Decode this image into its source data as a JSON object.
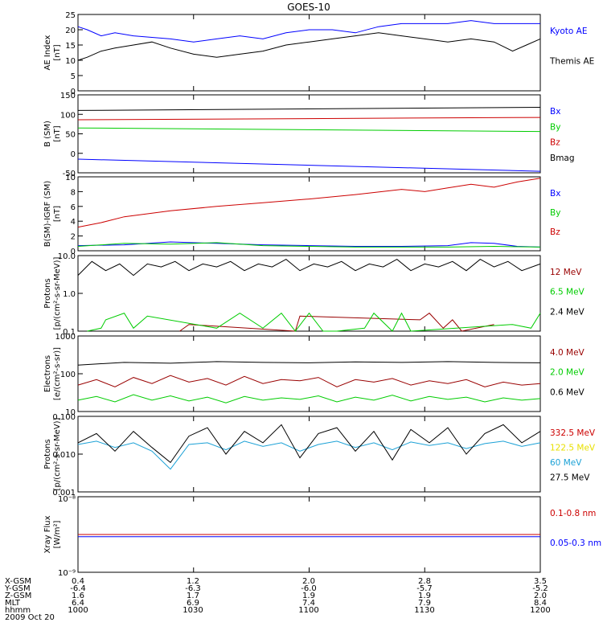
{
  "title": "GOES-10",
  "colors": {
    "blue": "#0000ff",
    "black": "#000000",
    "green": "#00cc00",
    "red": "#cc0000",
    "cyan": "#1ba1d6",
    "yellow": "#e8e000",
    "darkred": "#990000"
  },
  "ephemeris": {
    "row_labels": [
      "X-GSM",
      "Y-GSM",
      "Z-GSM",
      "MLT",
      "hhmm",
      "2009 Oct 20"
    ],
    "columns": [
      [
        "0.4",
        "-6.4",
        "1.6",
        "6.4",
        "1000"
      ],
      [
        "1.2",
        "-6.3",
        "1.7",
        "6.9",
        "1030"
      ],
      [
        "2.0",
        "-6.0",
        "1.9",
        "7.4",
        "1100"
      ],
      [
        "2.8",
        "-5.7",
        "1.9",
        "7.9",
        "1130"
      ],
      [
        "3.5",
        "-5.2",
        "2.0",
        "8.4",
        "1200"
      ]
    ]
  },
  "chart_data": [
    {
      "type": "line",
      "panel": "ae",
      "ylabel": "AE Index",
      "yunit": "[nT]",
      "ylim": [
        0,
        25
      ],
      "yticks": [
        "0",
        "5",
        "10",
        "15",
        "20",
        "25"
      ],
      "x_range": [
        "10:00",
        "12:00"
      ],
      "series": [
        {
          "name": "Kyoto AE",
          "color": "blue",
          "x": [
            0,
            0.02,
            0.05,
            0.08,
            0.12,
            0.2,
            0.25,
            0.3,
            0.35,
            0.4,
            0.45,
            0.5,
            0.55,
            0.6,
            0.65,
            0.7,
            0.75,
            0.8,
            0.85,
            0.9,
            0.95,
            1.0
          ],
          "y": [
            21,
            20,
            18,
            19,
            18,
            17,
            16,
            17,
            18,
            17,
            19,
            20,
            20,
            19,
            21,
            22,
            22,
            22,
            23,
            22,
            22,
            22
          ]
        },
        {
          "name": "Themis AE",
          "color": "black",
          "x": [
            0,
            0.02,
            0.05,
            0.08,
            0.12,
            0.16,
            0.2,
            0.25,
            0.3,
            0.35,
            0.4,
            0.45,
            0.5,
            0.55,
            0.6,
            0.65,
            0.7,
            0.75,
            0.8,
            0.85,
            0.9,
            0.94,
            0.97,
            1.0
          ],
          "y": [
            10,
            11,
            13,
            14,
            15,
            16,
            14,
            12,
            11,
            12,
            13,
            15,
            16,
            17,
            18,
            19,
            18,
            17,
            16,
            17,
            16,
            13,
            15,
            17
          ]
        }
      ]
    },
    {
      "type": "line",
      "panel": "b",
      "ylabel": "B (SM)",
      "yunit": "[nT]",
      "ylim": [
        -50,
        150
      ],
      "yticks": [
        "-50",
        "0",
        "50",
        "100",
        "150"
      ],
      "series": [
        {
          "name": "Bx",
          "color": "blue",
          "x": [
            0,
            1
          ],
          "y": [
            -15,
            -46
          ]
        },
        {
          "name": "By",
          "color": "green",
          "x": [
            0,
            1
          ],
          "y": [
            65,
            56
          ]
        },
        {
          "name": "Bz",
          "color": "red",
          "x": [
            0,
            1
          ],
          "y": [
            86,
            92
          ]
        },
        {
          "name": "Bmag",
          "color": "black",
          "x": [
            0,
            1
          ],
          "y": [
            110,
            118
          ]
        }
      ]
    },
    {
      "type": "line",
      "panel": "bdiff",
      "ylabel": "B(SM)-IGRF (SM)",
      "yunit": "[nT]",
      "ylim": [
        0,
        10
      ],
      "yticks": [
        "0",
        "2",
        "4",
        "6",
        "8",
        "10"
      ],
      "series": [
        {
          "name": "Bx",
          "color": "blue",
          "x": [
            0,
            0.1,
            0.2,
            0.3,
            0.4,
            0.5,
            0.6,
            0.7,
            0.8,
            0.85,
            0.9,
            0.95,
            1.0
          ],
          "y": [
            0.7,
            0.8,
            1.2,
            1.0,
            0.8,
            0.7,
            0.6,
            0.6,
            0.7,
            1.1,
            1.0,
            0.6,
            0.5
          ]
        },
        {
          "name": "By",
          "color": "green",
          "x": [
            0,
            0.1,
            0.2,
            0.3,
            0.4,
            0.5,
            0.6,
            0.7,
            0.8,
            0.9,
            1.0
          ],
          "y": [
            0.6,
            1.0,
            0.9,
            1.1,
            0.7,
            0.6,
            0.5,
            0.5,
            0.5,
            0.6,
            0.5
          ]
        },
        {
          "name": "Bz",
          "color": "red",
          "x": [
            0,
            0.05,
            0.1,
            0.15,
            0.2,
            0.3,
            0.4,
            0.5,
            0.6,
            0.7,
            0.75,
            0.8,
            0.85,
            0.9,
            0.95,
            1.0
          ],
          "y": [
            3.2,
            3.8,
            4.6,
            5.0,
            5.4,
            6.0,
            6.5,
            7.0,
            7.6,
            8.3,
            8.0,
            8.5,
            9.0,
            8.6,
            9.3,
            9.8
          ]
        }
      ]
    },
    {
      "type": "line",
      "panel": "protons1",
      "scale": "log",
      "ylabel": "Protons",
      "yunit": "[p/(cm²-s-sr-MeV)]",
      "ylim": [
        0.1,
        10
      ],
      "yticks": [
        "0.1",
        "1.0",
        "10.0"
      ],
      "series": [
        {
          "name": "12 MeV",
          "color": "darkred",
          "x": [
            0.22,
            0.24,
            0.47,
            0.48,
            0.74,
            0.76,
            0.79,
            0.81,
            0.83,
            0.9
          ],
          "y": [
            0.1,
            0.15,
            0.1,
            0.25,
            0.2,
            0.3,
            0.12,
            0.2,
            0.1,
            0.15
          ]
        },
        {
          "name": "6.5 MeV",
          "color": "green",
          "x": [
            0.02,
            0.05,
            0.06,
            0.1,
            0.12,
            0.15,
            0.3,
            0.35,
            0.4,
            0.44,
            0.47,
            0.5,
            0.53,
            0.56,
            0.62,
            0.64,
            0.68,
            0.7,
            0.72,
            0.94,
            0.98,
            1.0
          ],
          "y": [
            0.1,
            0.12,
            0.2,
            0.3,
            0.12,
            0.25,
            0.12,
            0.3,
            0.12,
            0.3,
            0.1,
            0.3,
            0.1,
            0.1,
            0.12,
            0.3,
            0.1,
            0.3,
            0.1,
            0.15,
            0.12,
            0.3
          ]
        },
        {
          "name": "2.4 MeV",
          "color": "black",
          "x": [
            0,
            0.03,
            0.06,
            0.09,
            0.12,
            0.15,
            0.18,
            0.21,
            0.24,
            0.27,
            0.3,
            0.33,
            0.36,
            0.39,
            0.42,
            0.45,
            0.48,
            0.51,
            0.54,
            0.57,
            0.6,
            0.63,
            0.66,
            0.69,
            0.72,
            0.75,
            0.78,
            0.81,
            0.84,
            0.87,
            0.9,
            0.93,
            0.96,
            1.0
          ],
          "y": [
            3,
            7,
            4,
            6,
            3,
            6,
            5,
            7,
            4,
            6,
            5,
            7,
            4,
            6,
            5,
            8,
            4,
            6,
            5,
            7,
            4,
            6,
            5,
            8,
            4,
            6,
            5,
            7,
            4,
            8,
            5,
            7,
            4,
            6
          ]
        }
      ]
    },
    {
      "type": "line",
      "panel": "electrons",
      "scale": "log",
      "ylabel": "Electrons",
      "yunit": "[e/(cm²-s-sr)]",
      "ylim": [
        10,
        1000
      ],
      "yticks": [
        "10",
        "100",
        "1000"
      ],
      "series": [
        {
          "name": "4.0 MeV",
          "color": "darkred",
          "x": [
            0,
            0.04,
            0.08,
            0.12,
            0.16,
            0.2,
            0.24,
            0.28,
            0.32,
            0.36,
            0.4,
            0.44,
            0.48,
            0.52,
            0.56,
            0.6,
            0.64,
            0.68,
            0.72,
            0.76,
            0.8,
            0.84,
            0.88,
            0.92,
            0.96,
            1.0
          ],
          "y": [
            50,
            70,
            45,
            80,
            55,
            90,
            60,
            75,
            50,
            85,
            55,
            70,
            65,
            80,
            45,
            70,
            60,
            75,
            50,
            65,
            55,
            70,
            45,
            60,
            50,
            55
          ]
        },
        {
          "name": "2.0 MeV",
          "color": "green",
          "x": [
            0,
            0.04,
            0.08,
            0.12,
            0.16,
            0.2,
            0.24,
            0.28,
            0.32,
            0.36,
            0.4,
            0.44,
            0.48,
            0.52,
            0.56,
            0.6,
            0.64,
            0.68,
            0.72,
            0.76,
            0.8,
            0.84,
            0.88,
            0.92,
            0.96,
            1.0
          ],
          "y": [
            20,
            25,
            18,
            28,
            20,
            26,
            19,
            24,
            17,
            25,
            20,
            23,
            21,
            26,
            18,
            24,
            20,
            27,
            19,
            25,
            21,
            24,
            18,
            23,
            20,
            22
          ]
        },
        {
          "name": "0.6 MeV",
          "color": "black",
          "x": [
            0,
            0.1,
            0.2,
            0.3,
            0.4,
            0.5,
            0.6,
            0.7,
            0.8,
            0.9,
            1.0
          ],
          "y": [
            170,
            200,
            190,
            210,
            200,
            195,
            205,
            200,
            210,
            200,
            195
          ]
        }
      ]
    },
    {
      "type": "line",
      "panel": "protons2",
      "scale": "log",
      "ylabel": "Protons",
      "yunit": "[p/(cm²-s-sr-MeV)]",
      "ylim": [
        0.001,
        0.1
      ],
      "yticks": [
        "0.001",
        "0.010",
        "0.100"
      ],
      "series": [
        {
          "name": "332.5 MeV",
          "color": "red",
          "x": [],
          "y": []
        },
        {
          "name": "122.5 MeV",
          "color": "yellow",
          "x": [],
          "y": []
        },
        {
          "name": "60 MeV",
          "color": "cyan",
          "x": [
            0,
            0.04,
            0.08,
            0.12,
            0.16,
            0.2,
            0.24,
            0.28,
            0.32,
            0.36,
            0.4,
            0.44,
            0.48,
            0.52,
            0.56,
            0.6,
            0.64,
            0.68,
            0.72,
            0.76,
            0.8,
            0.84,
            0.88,
            0.92,
            0.96,
            1.0
          ],
          "y": [
            0.018,
            0.022,
            0.015,
            0.02,
            0.012,
            0.004,
            0.018,
            0.02,
            0.013,
            0.022,
            0.016,
            0.02,
            0.012,
            0.018,
            0.022,
            0.015,
            0.02,
            0.013,
            0.021,
            0.017,
            0.02,
            0.014,
            0.019,
            0.022,
            0.016,
            0.02
          ]
        },
        {
          "name": "27.5 MeV",
          "color": "black",
          "x": [
            0,
            0.04,
            0.08,
            0.12,
            0.16,
            0.2,
            0.24,
            0.28,
            0.32,
            0.36,
            0.4,
            0.44,
            0.48,
            0.52,
            0.56,
            0.6,
            0.64,
            0.68,
            0.72,
            0.76,
            0.8,
            0.84,
            0.88,
            0.92,
            0.96,
            1.0
          ],
          "y": [
            0.02,
            0.035,
            0.012,
            0.04,
            0.015,
            0.006,
            0.03,
            0.05,
            0.01,
            0.04,
            0.02,
            0.06,
            0.008,
            0.035,
            0.05,
            0.012,
            0.04,
            0.007,
            0.045,
            0.02,
            0.05,
            0.01,
            0.035,
            0.06,
            0.02,
            0.04
          ]
        }
      ]
    },
    {
      "type": "line",
      "panel": "xray",
      "scale": "log",
      "ylabel": "Xray Flux",
      "yunit": "[W/m²]",
      "ylim_labels": [
        "10⁻⁹",
        "10⁻⁸"
      ],
      "series": [
        {
          "name": "0.1-0.8 nm",
          "color": "red",
          "x": [
            0,
            1
          ],
          "y_frac": [
            0.5,
            0.5
          ]
        },
        {
          "name": "0.05-0.3 nm",
          "color": "blue",
          "x": [
            0,
            1
          ],
          "y_frac": [
            0.53,
            0.53
          ]
        }
      ]
    }
  ]
}
